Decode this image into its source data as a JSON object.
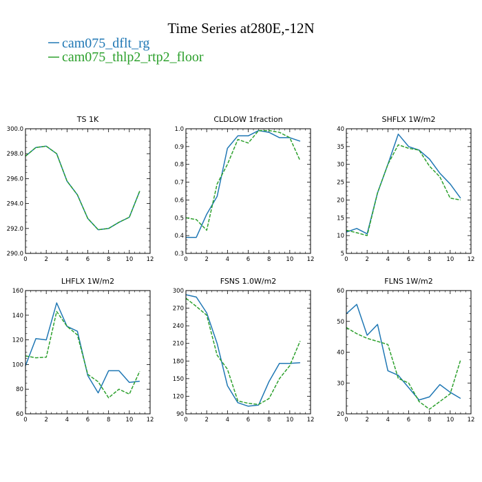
{
  "figure": {
    "title": "Time Series at280E,-12N",
    "legend": [
      {
        "label": "cam075_dflt_rg",
        "color": "#1f77b4"
      },
      {
        "label": "cam075_thlp2_rtp2_floor",
        "color": "#2ca02c"
      }
    ]
  },
  "chart_data": [
    {
      "type": "line",
      "title": "TS   1K",
      "xlim": [
        0,
        12
      ],
      "xticks": [
        "0",
        "2",
        "4",
        "6",
        "8",
        "10",
        "12"
      ],
      "ylim": [
        290,
        300
      ],
      "yticks": [
        "290.0",
        "292.0",
        "294.0",
        "296.0",
        "298.0",
        "300.0"
      ],
      "x": [
        0,
        1,
        2,
        3,
        4,
        5,
        6,
        7,
        8,
        9,
        10,
        11
      ],
      "series": [
        {
          "name": "cam075_dflt_rg",
          "values": [
            297.8,
            298.5,
            298.6,
            298.0,
            295.8,
            294.7,
            292.8,
            291.9,
            292.0,
            292.5,
            292.9,
            295.0
          ]
        },
        {
          "name": "cam075_thlp2_rtp2_floor",
          "values": [
            297.8,
            298.5,
            298.6,
            298.0,
            295.8,
            294.7,
            292.8,
            291.9,
            292.0,
            292.5,
            292.9,
            295.0
          ]
        }
      ]
    },
    {
      "type": "line",
      "title": "CLDLOW   1fraction",
      "xlim": [
        0,
        12
      ],
      "xticks": [
        "0",
        "2",
        "4",
        "6",
        "8",
        "10",
        "12"
      ],
      "ylim": [
        0.3,
        1.0
      ],
      "yticks": [
        "0.3",
        "0.4",
        "0.5",
        "0.6",
        "0.7",
        "0.8",
        "0.9",
        "1.0"
      ],
      "x": [
        0,
        1,
        2,
        3,
        4,
        5,
        6,
        7,
        8,
        9,
        10,
        11
      ],
      "series": [
        {
          "name": "cam075_dflt_rg",
          "values": [
            0.39,
            0.39,
            0.52,
            0.62,
            0.89,
            0.96,
            0.96,
            0.99,
            0.98,
            0.95,
            0.95,
            0.93
          ]
        },
        {
          "name": "cam075_thlp2_rtp2_floor",
          "values": [
            0.5,
            0.49,
            0.43,
            0.69,
            0.8,
            0.94,
            0.92,
            0.99,
            0.99,
            0.98,
            0.95,
            0.82
          ]
        }
      ]
    },
    {
      "type": "line",
      "title": "SHFLX   1W/m2",
      "xlim": [
        0,
        12
      ],
      "xticks": [
        "0",
        "2",
        "4",
        "6",
        "8",
        "10",
        "12"
      ],
      "ylim": [
        5,
        40
      ],
      "yticks": [
        "5",
        "10",
        "15",
        "20",
        "25",
        "30",
        "35",
        "40"
      ],
      "x": [
        0,
        1,
        2,
        3,
        4,
        5,
        6,
        7,
        8,
        9,
        10,
        11
      ],
      "series": [
        {
          "name": "cam075_dflt_rg",
          "values": [
            11,
            12,
            10.5,
            22,
            30,
            38.5,
            35,
            34,
            31.5,
            27.5,
            24.5,
            20.5
          ]
        },
        {
          "name": "cam075_thlp2_rtp2_floor",
          "values": [
            11.5,
            10.8,
            10,
            22,
            30,
            35.5,
            34.5,
            34,
            29.5,
            26.5,
            20.5,
            20
          ]
        }
      ]
    },
    {
      "type": "line",
      "title": "LHFLX   1W/m2",
      "xlim": [
        0,
        12
      ],
      "xticks": [
        "0",
        "2",
        "4",
        "6",
        "8",
        "10",
        "12"
      ],
      "ylim": [
        60,
        160
      ],
      "yticks": [
        "60",
        "80",
        "100",
        "120",
        "140",
        "160"
      ],
      "x": [
        0,
        1,
        2,
        3,
        4,
        5,
        6,
        7,
        8,
        9,
        10,
        11
      ],
      "series": [
        {
          "name": "cam075_dflt_rg",
          "values": [
            99,
            121,
            120,
            150,
            131,
            127,
            91,
            77,
            95,
            95,
            85.5,
            86.5
          ]
        },
        {
          "name": "cam075_thlp2_rtp2_floor",
          "values": [
            107,
            105.5,
            106,
            143,
            131,
            124,
            92,
            86,
            73,
            80,
            76,
            94.5
          ]
        }
      ]
    },
    {
      "type": "line",
      "title": "FSNS   1.0W/m2",
      "xlim": [
        0,
        12
      ],
      "xticks": [
        "0",
        "2",
        "4",
        "6",
        "8",
        "10",
        "12"
      ],
      "ylim": [
        90,
        300
      ],
      "yticks": [
        "90",
        "120",
        "150",
        "180",
        "210",
        "240",
        "270",
        "300"
      ],
      "x": [
        0,
        1,
        2,
        3,
        4,
        5,
        6,
        7,
        8,
        9,
        10,
        11
      ],
      "series": [
        {
          "name": "cam075_dflt_rg",
          "values": [
            293,
            289,
            262,
            210,
            138,
            109,
            103,
            105,
            145,
            176,
            176,
            177
          ]
        },
        {
          "name": "cam075_thlp2_rtp2_floor",
          "values": [
            287,
            273,
            258,
            190,
            166,
            112,
            108,
            106,
            116,
            150,
            172,
            214
          ]
        }
      ]
    },
    {
      "type": "line",
      "title": "FLNS   1W/m2",
      "xlim": [
        0,
        12
      ],
      "xticks": [
        "0",
        "2",
        "4",
        "6",
        "8",
        "10",
        "12"
      ],
      "ylim": [
        20,
        60
      ],
      "yticks": [
        "20",
        "30",
        "40",
        "50",
        "60"
      ],
      "x": [
        0,
        1,
        2,
        3,
        4,
        5,
        6,
        7,
        8,
        9,
        10,
        11
      ],
      "series": [
        {
          "name": "cam075_dflt_rg",
          "values": [
            52.5,
            55.5,
            45.5,
            49,
            34,
            32.5,
            28.5,
            24.5,
            25.5,
            29.5,
            27,
            25
          ]
        },
        {
          "name": "cam075_thlp2_rtp2_floor",
          "values": [
            48,
            46,
            44.5,
            43.5,
            42.5,
            31.5,
            30,
            24,
            21.5,
            24,
            26.5,
            37.5
          ]
        }
      ]
    }
  ]
}
